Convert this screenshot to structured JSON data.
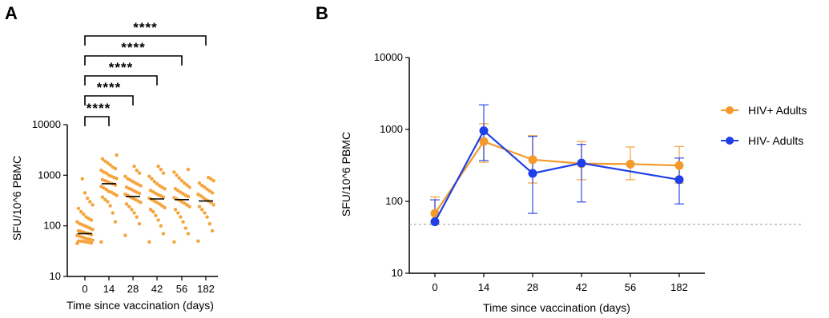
{
  "colors": {
    "hiv_pos": "#f39a2b",
    "hiv_neg": "#1f3fe8",
    "dots": "#f5a33a",
    "axis": "#000000",
    "threshold": "#999999"
  },
  "chart_data": [
    {
      "panel": "A",
      "type": "scatter",
      "x_categories": [
        "0",
        "14",
        "28",
        "42",
        "56",
        "182"
      ],
      "ylabel": "SFU/10^6 PBMC",
      "xlabel": "Time since vaccination (days)",
      "yscale": "log",
      "ylim": [
        10,
        10000
      ],
      "ytick_labels": [
        "10",
        "100",
        "1000",
        "10000"
      ],
      "medians": [
        70,
        680,
        380,
        340,
        330,
        310
      ],
      "points": [
        [
          45,
          46,
          47,
          48,
          49,
          50,
          50,
          52,
          54,
          55,
          57,
          60,
          62,
          65,
          67,
          70,
          72,
          75,
          78,
          80,
          85,
          90,
          95,
          100,
          105,
          110,
          120,
          130,
          140,
          150,
          170,
          190,
          220,
          260,
          300,
          350,
          450,
          850
        ],
        [
          48,
          120,
          180,
          250,
          300,
          330,
          370,
          400,
          430,
          460,
          480,
          520,
          560,
          600,
          640,
          680,
          700,
          740,
          780,
          820,
          860,
          900,
          950,
          1000,
          1100,
          1150,
          1250,
          1350,
          1450,
          1600,
          1750,
          1900,
          2100,
          2500
        ],
        [
          65,
          110,
          150,
          180,
          210,
          240,
          270,
          290,
          310,
          330,
          350,
          370,
          400,
          420,
          440,
          460,
          490,
          520,
          550,
          580,
          620,
          660,
          700,
          750,
          800,
          850,
          950,
          1100,
          1250,
          1500
        ],
        [
          48,
          70,
          100,
          130,
          160,
          190,
          210,
          230,
          250,
          270,
          290,
          310,
          330,
          350,
          370,
          390,
          410,
          440,
          470,
          500,
          540,
          580,
          620,
          680,
          750,
          850,
          950,
          1100,
          1300,
          1500
        ],
        [
          48,
          70,
          90,
          120,
          150,
          180,
          210,
          240,
          260,
          280,
          300,
          320,
          340,
          360,
          380,
          400,
          430,
          460,
          500,
          540,
          580,
          640,
          700,
          780,
          880,
          1000,
          1150,
          1300
        ],
        [
          50,
          80,
          110,
          150,
          180,
          210,
          240,
          260,
          290,
          310,
          330,
          360,
          390,
          420,
          450,
          490,
          530,
          580,
          630,
          700,
          780,
          850,
          900
        ]
      ],
      "significance": [
        {
          "pair": [
            "0",
            "14"
          ],
          "label": "****"
        },
        {
          "pair": [
            "0",
            "28"
          ],
          "label": "****"
        },
        {
          "pair": [
            "0",
            "42"
          ],
          "label": "****"
        },
        {
          "pair": [
            "0",
            "56"
          ],
          "label": "****"
        },
        {
          "pair": [
            "0",
            "182"
          ],
          "label": "****"
        }
      ]
    },
    {
      "panel": "B",
      "type": "line",
      "x_categories": [
        "0",
        "14",
        "28",
        "42",
        "56",
        "182"
      ],
      "ylabel": "SFU/10^6 PBMC",
      "xlabel": "Time since vaccination (days)",
      "yscale": "log",
      "ylim": [
        10,
        10000
      ],
      "ytick_labels": [
        "10",
        "100",
        "1000",
        "10000"
      ],
      "threshold": 48,
      "legend_position": "right",
      "series": [
        {
          "name": "HIV+ Adults",
          "color": "#f39a2b",
          "values": [
            68,
            680,
            380,
            335,
            330,
            315
          ],
          "err_low": [
            48,
            350,
            180,
            200,
            200,
            180
          ],
          "err_high": [
            115,
            1200,
            820,
            680,
            570,
            580
          ]
        },
        {
          "name": "HIV- Adults",
          "color": "#1f3fe8",
          "values": [
            52,
            960,
            245,
            340,
            null,
            200
          ],
          "err_low": [
            null,
            370,
            68,
            98,
            null,
            92
          ],
          "err_high": [
            105,
            2200,
            800,
            620,
            null,
            400
          ]
        }
      ]
    }
  ]
}
